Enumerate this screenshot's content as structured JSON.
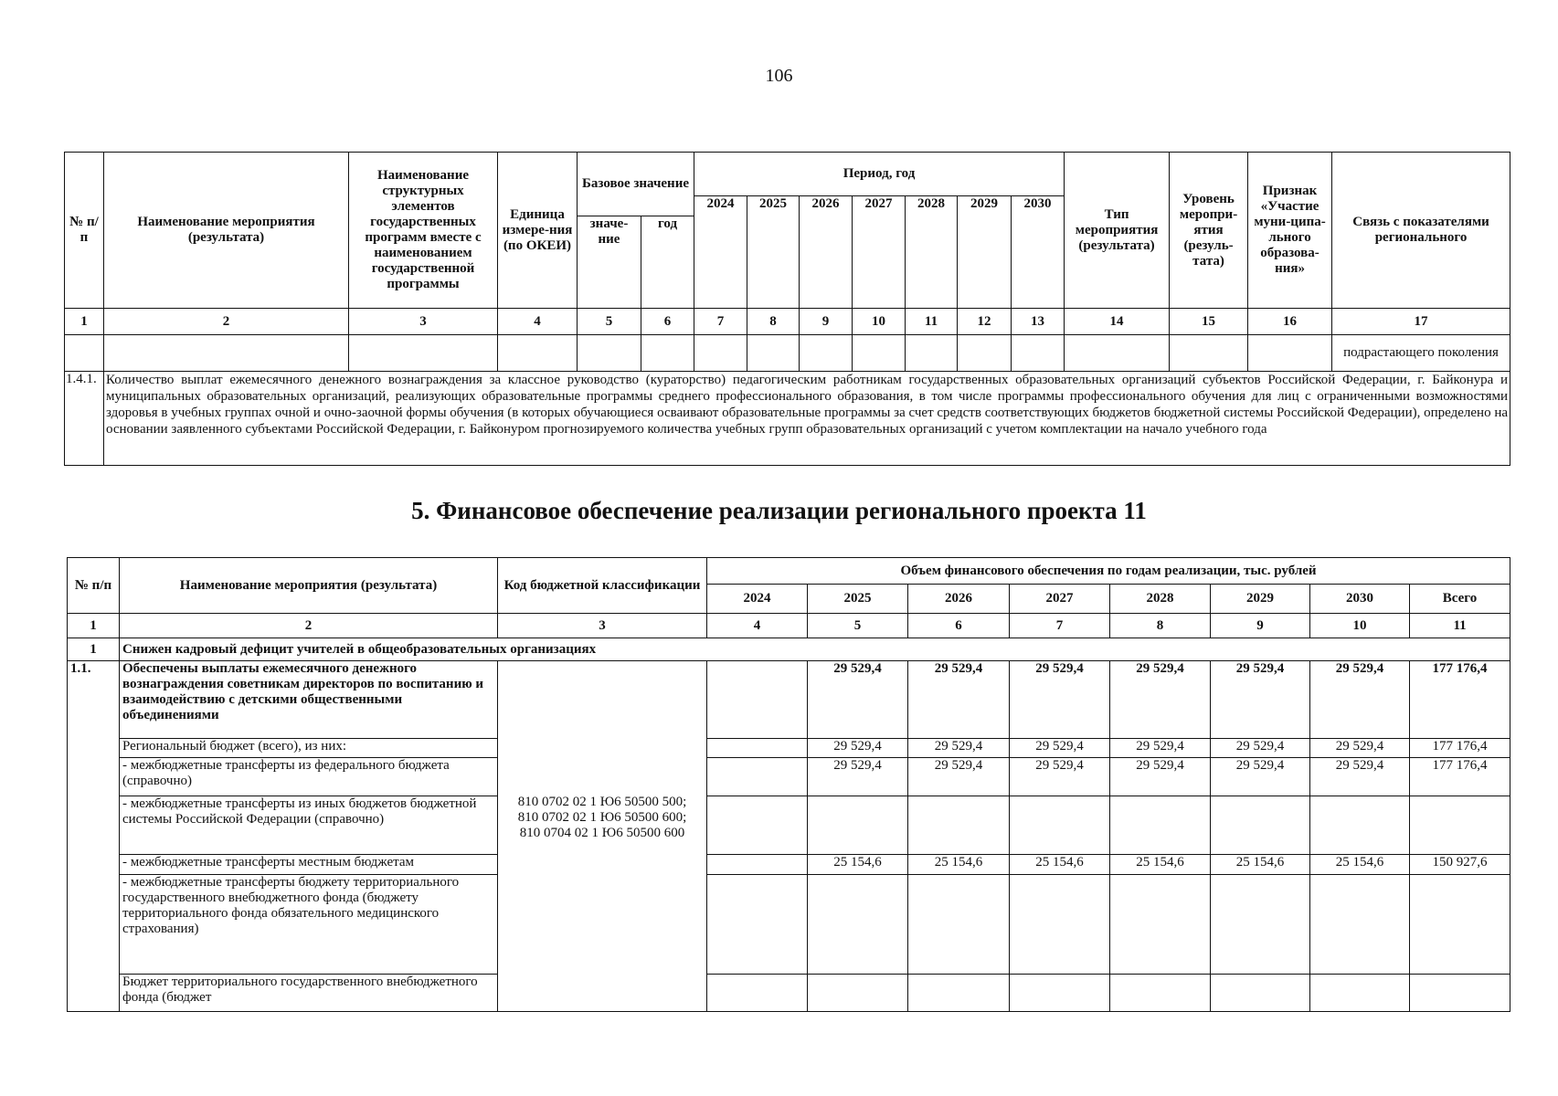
{
  "page_number": "106",
  "top_table": {
    "headers": {
      "num": "№ п/п",
      "name": "Наименование мероприятия (результата)",
      "struct": "Наименование структурных элементов государственных программ вместе с наименованием государственной программы",
      "unit": "Единица измере-ния (по ОКЕИ)",
      "base": "Базовое значение",
      "base_value": "значе-ние",
      "base_year": "год",
      "period": "Период, год",
      "years": [
        "2024",
        "2025",
        "2026",
        "2027",
        "2028",
        "2029",
        "2030"
      ],
      "type": "Тип мероприятия (результата)",
      "level": "Уровень меропри-ятия (резуль-тата)",
      "municipal": "Признак «Участие муни-ципа-льного образова-ния»",
      "link": "Связь с показателями регионального"
    },
    "col_numbers": [
      "1",
      "2",
      "3",
      "4",
      "5",
      "6",
      "7",
      "8",
      "9",
      "10",
      "11",
      "12",
      "13",
      "14",
      "15",
      "16",
      "17"
    ],
    "continuation_text": "подрастающего поколения",
    "note_num": "1.4.1.",
    "note_text": "Количество выплат ежемесячного денежного вознаграждения за классное руководство (кураторство) педагогическим работникам государственных образовательных организаций субъектов Российской Федерации, г. Байконура и муниципальных образовательных организаций, реализующих образовательные программы среднего профессионального образования, в том числе программы профессионального обучения для лиц с ограниченными возможностями здоровья в учебных группах очной и очно-заочной формы обучения (в которых обучающиеся осваивают образовательные программы за счет средств соответствующих бюджетов бюджетной системы Российской Федерации), определено на основании заявленного субъектами Российской Федерации, г. Байконуром прогнозируемого количества учебных групп образовательных организаций с учетом комплектации на начало учебного года"
  },
  "section_title": "5. Финансовое обеспечение реализации регионального проекта 11",
  "fin_table": {
    "headers": {
      "num": "№ п/п",
      "name": "Наименование мероприятия (результата)",
      "code": "Код бюджетной классификации",
      "volume": "Объем финансового обеспечения по годам реализации, тыс. рублей",
      "years": [
        "2024",
        "2025",
        "2026",
        "2027",
        "2028",
        "2029",
        "2030",
        "Всего"
      ]
    },
    "col_numbers": [
      "1",
      "2",
      "3",
      "4",
      "5",
      "6",
      "7",
      "8",
      "9",
      "10",
      "11"
    ],
    "task_num": "1",
    "task_name": "Снижен кадровый дефицит учителей в общеобразовательных организациях",
    "item_num": "1.1.",
    "code": "810 0702 02 1 Ю6 50500 500; 810 0702 02 1 Ю6 50500 600; 810 0704 02 1 Ю6 50500 600",
    "rows": [
      {
        "name": "Обеспечены выплаты ежемесячного денежного вознаграждения советникам директоров по воспитанию и взаимодействию с детскими общественными объединениями",
        "values": [
          "",
          "29 529,4",
          "29 529,4",
          "29 529,4",
          "29 529,4",
          "29 529,4",
          "29 529,4",
          "177 176,4"
        ]
      },
      {
        "name": "Региональный бюджет (всего), из них:",
        "values": [
          "",
          "29 529,4",
          "29 529,4",
          "29 529,4",
          "29 529,4",
          "29 529,4",
          "29 529,4",
          "177 176,4"
        ]
      },
      {
        "name": "- межбюджетные трансферты из федерального бюджета (справочно)",
        "values": [
          "",
          "29 529,4",
          "29 529,4",
          "29 529,4",
          "29 529,4",
          "29 529,4",
          "29 529,4",
          "177 176,4"
        ]
      },
      {
        "name": "- межбюджетные трансферты из иных бюджетов бюджетной системы Российской Федерации (справочно)",
        "values": [
          "",
          "",
          "",
          "",
          "",
          "",
          "",
          ""
        ]
      },
      {
        "name": "- межбюджетные трансферты местным бюджетам",
        "values": [
          "",
          "25 154,6",
          "25 154,6",
          "25 154,6",
          "25 154,6",
          "25 154,6",
          "25 154,6",
          "150 927,6"
        ]
      },
      {
        "name": "- межбюджетные трансферты бюджету территориального государственного внебюджетного фонда (бюджету территориального фонда обязательного медицинского страхования)",
        "values": [
          "",
          "",
          "",
          "",
          "",
          "",
          "",
          ""
        ]
      },
      {
        "name": "Бюджет территориального государственного внебюджетного фонда (бюджет",
        "values": [
          "",
          "",
          "",
          "",
          "",
          "",
          "",
          ""
        ]
      }
    ]
  }
}
